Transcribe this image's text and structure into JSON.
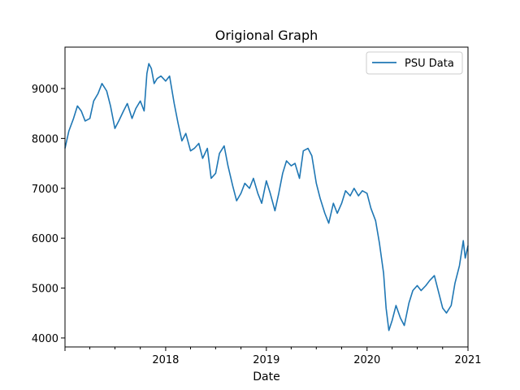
{
  "chart_data": {
    "type": "line",
    "title": "Origional Graph",
    "xlabel": "Date",
    "ylabel": "",
    "xlim": [
      "2017-01-01",
      "2021-01-01"
    ],
    "ylim": [
      3820,
      9830
    ],
    "x_ticks": [
      {
        "value": "2017-01-01",
        "label": ""
      },
      {
        "value": "2018-01-01",
        "label": "2018"
      },
      {
        "value": "2019-01-01",
        "label": "2019"
      },
      {
        "value": "2020-01-01",
        "label": "2020"
      },
      {
        "value": "2021-01-01",
        "label": "2021"
      }
    ],
    "y_ticks": [
      4000,
      5000,
      6000,
      7000,
      8000,
      9000
    ],
    "legend": {
      "position": "top-right",
      "entries": [
        "PSU Data"
      ]
    },
    "grid": false,
    "series": [
      {
        "name": "PSU Data",
        "color": "#1f77b4",
        "points": [
          [
            "2017-01-01",
            7800
          ],
          [
            "2017-01-15",
            8150
          ],
          [
            "2017-02-01",
            8400
          ],
          [
            "2017-02-15",
            8650
          ],
          [
            "2017-03-01",
            8550
          ],
          [
            "2017-03-15",
            8350
          ],
          [
            "2017-04-01",
            8400
          ],
          [
            "2017-04-15",
            8750
          ],
          [
            "2017-05-01",
            8900
          ],
          [
            "2017-05-15",
            9100
          ],
          [
            "2017-06-01",
            8950
          ],
          [
            "2017-06-15",
            8650
          ],
          [
            "2017-07-01",
            8200
          ],
          [
            "2017-07-15",
            8350
          ],
          [
            "2017-08-01",
            8550
          ],
          [
            "2017-08-15",
            8700
          ],
          [
            "2017-09-01",
            8400
          ],
          [
            "2017-09-15",
            8600
          ],
          [
            "2017-10-01",
            8750
          ],
          [
            "2017-10-15",
            8550
          ],
          [
            "2017-10-25",
            9300
          ],
          [
            "2017-11-01",
            9500
          ],
          [
            "2017-11-10",
            9400
          ],
          [
            "2017-11-20",
            9100
          ],
          [
            "2017-12-01",
            9200
          ],
          [
            "2017-12-15",
            9250
          ],
          [
            "2018-01-01",
            9150
          ],
          [
            "2018-01-15",
            9250
          ],
          [
            "2018-02-01",
            8700
          ],
          [
            "2018-02-15",
            8300
          ],
          [
            "2018-03-01",
            7950
          ],
          [
            "2018-03-15",
            8100
          ],
          [
            "2018-04-01",
            7750
          ],
          [
            "2018-04-15",
            7800
          ],
          [
            "2018-05-01",
            7900
          ],
          [
            "2018-05-15",
            7600
          ],
          [
            "2018-06-01",
            7800
          ],
          [
            "2018-06-15",
            7200
          ],
          [
            "2018-07-01",
            7300
          ],
          [
            "2018-07-15",
            7700
          ],
          [
            "2018-08-01",
            7850
          ],
          [
            "2018-08-15",
            7450
          ],
          [
            "2018-09-01",
            7050
          ],
          [
            "2018-09-15",
            6750
          ],
          [
            "2018-10-01",
            6900
          ],
          [
            "2018-10-15",
            7100
          ],
          [
            "2018-11-01",
            7000
          ],
          [
            "2018-11-15",
            7200
          ],
          [
            "2018-12-01",
            6900
          ],
          [
            "2018-12-15",
            6700
          ],
          [
            "2019-01-01",
            7150
          ],
          [
            "2019-01-15",
            6900
          ],
          [
            "2019-02-01",
            6550
          ],
          [
            "2019-02-15",
            6900
          ],
          [
            "2019-03-01",
            7300
          ],
          [
            "2019-03-15",
            7550
          ],
          [
            "2019-04-01",
            7450
          ],
          [
            "2019-04-15",
            7500
          ],
          [
            "2019-05-01",
            7200
          ],
          [
            "2019-05-15",
            7750
          ],
          [
            "2019-06-01",
            7800
          ],
          [
            "2019-06-15",
            7650
          ],
          [
            "2019-07-01",
            7100
          ],
          [
            "2019-07-15",
            6800
          ],
          [
            "2019-08-01",
            6500
          ],
          [
            "2019-08-15",
            6300
          ],
          [
            "2019-09-01",
            6700
          ],
          [
            "2019-09-15",
            6500
          ],
          [
            "2019-10-01",
            6700
          ],
          [
            "2019-10-15",
            6950
          ],
          [
            "2019-11-01",
            6850
          ],
          [
            "2019-11-15",
            7000
          ],
          [
            "2019-12-01",
            6850
          ],
          [
            "2019-12-15",
            6950
          ],
          [
            "2020-01-01",
            6900
          ],
          [
            "2020-01-15",
            6600
          ],
          [
            "2020-02-01",
            6350
          ],
          [
            "2020-02-15",
            5900
          ],
          [
            "2020-03-01",
            5300
          ],
          [
            "2020-03-10",
            4600
          ],
          [
            "2020-03-20",
            4150
          ],
          [
            "2020-04-01",
            4350
          ],
          [
            "2020-04-15",
            4650
          ],
          [
            "2020-05-01",
            4400
          ],
          [
            "2020-05-15",
            4250
          ],
          [
            "2020-06-01",
            4700
          ],
          [
            "2020-06-15",
            4950
          ],
          [
            "2020-07-01",
            5050
          ],
          [
            "2020-07-15",
            4950
          ],
          [
            "2020-08-01",
            5050
          ],
          [
            "2020-08-15",
            5150
          ],
          [
            "2020-09-01",
            5250
          ],
          [
            "2020-09-15",
            4950
          ],
          [
            "2020-10-01",
            4600
          ],
          [
            "2020-10-15",
            4500
          ],
          [
            "2020-11-01",
            4650
          ],
          [
            "2020-11-15",
            5100
          ],
          [
            "2020-12-01",
            5450
          ],
          [
            "2020-12-15",
            5950
          ],
          [
            "2020-12-22",
            5600
          ],
          [
            "2021-01-01",
            5850
          ]
        ]
      }
    ]
  }
}
